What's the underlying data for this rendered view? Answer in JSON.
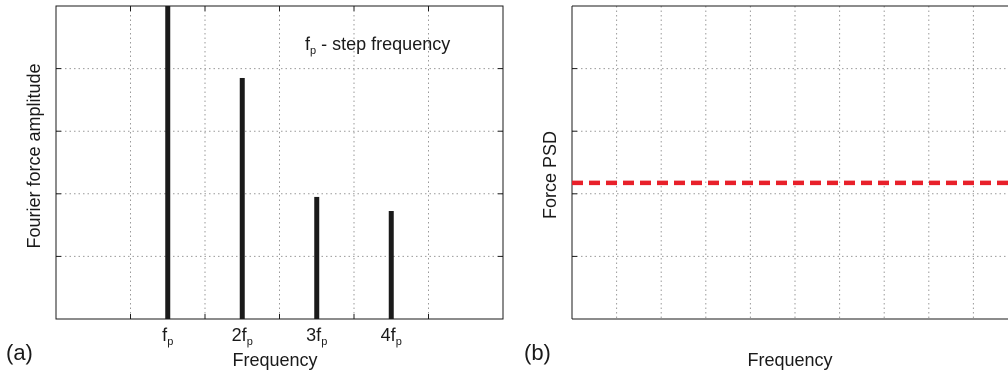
{
  "chart_data": [
    {
      "panel_label": "(a)",
      "type": "bar",
      "xlabel": "Frequency",
      "ylabel": "Fourier force amplitude",
      "annotation": {
        "main": "f",
        "sub": "p",
        "rest": " - step frequency"
      },
      "categories": [
        {
          "prefix": "",
          "base": "f",
          "sub": "p"
        },
        {
          "prefix": "2",
          "base": "f",
          "sub": "p"
        },
        {
          "prefix": "3",
          "base": "f",
          "sub": "p"
        },
        {
          "prefix": "4",
          "base": "f",
          "sub": "p"
        }
      ],
      "x_positions": [
        1,
        2,
        3,
        4
      ],
      "xlim": [
        -0.5,
        5.5
      ],
      "values": [
        0.8,
        0.57,
        0.19,
        0.145
      ],
      "ylim": [
        -0.2,
        0.8
      ],
      "grid": true,
      "bar_color": "#1a1a1a"
    },
    {
      "panel_label": "(b)",
      "type": "line",
      "xlabel": "Frequency",
      "ylabel": "Force PSD",
      "series": [
        {
          "x": [
            0,
            1
          ],
          "y": [
            0.435,
            0.435
          ],
          "style": "dashed",
          "color": "#e8202a"
        }
      ],
      "xlim": [
        0,
        1
      ],
      "ylim": [
        0,
        1
      ],
      "grid": true
    }
  ]
}
